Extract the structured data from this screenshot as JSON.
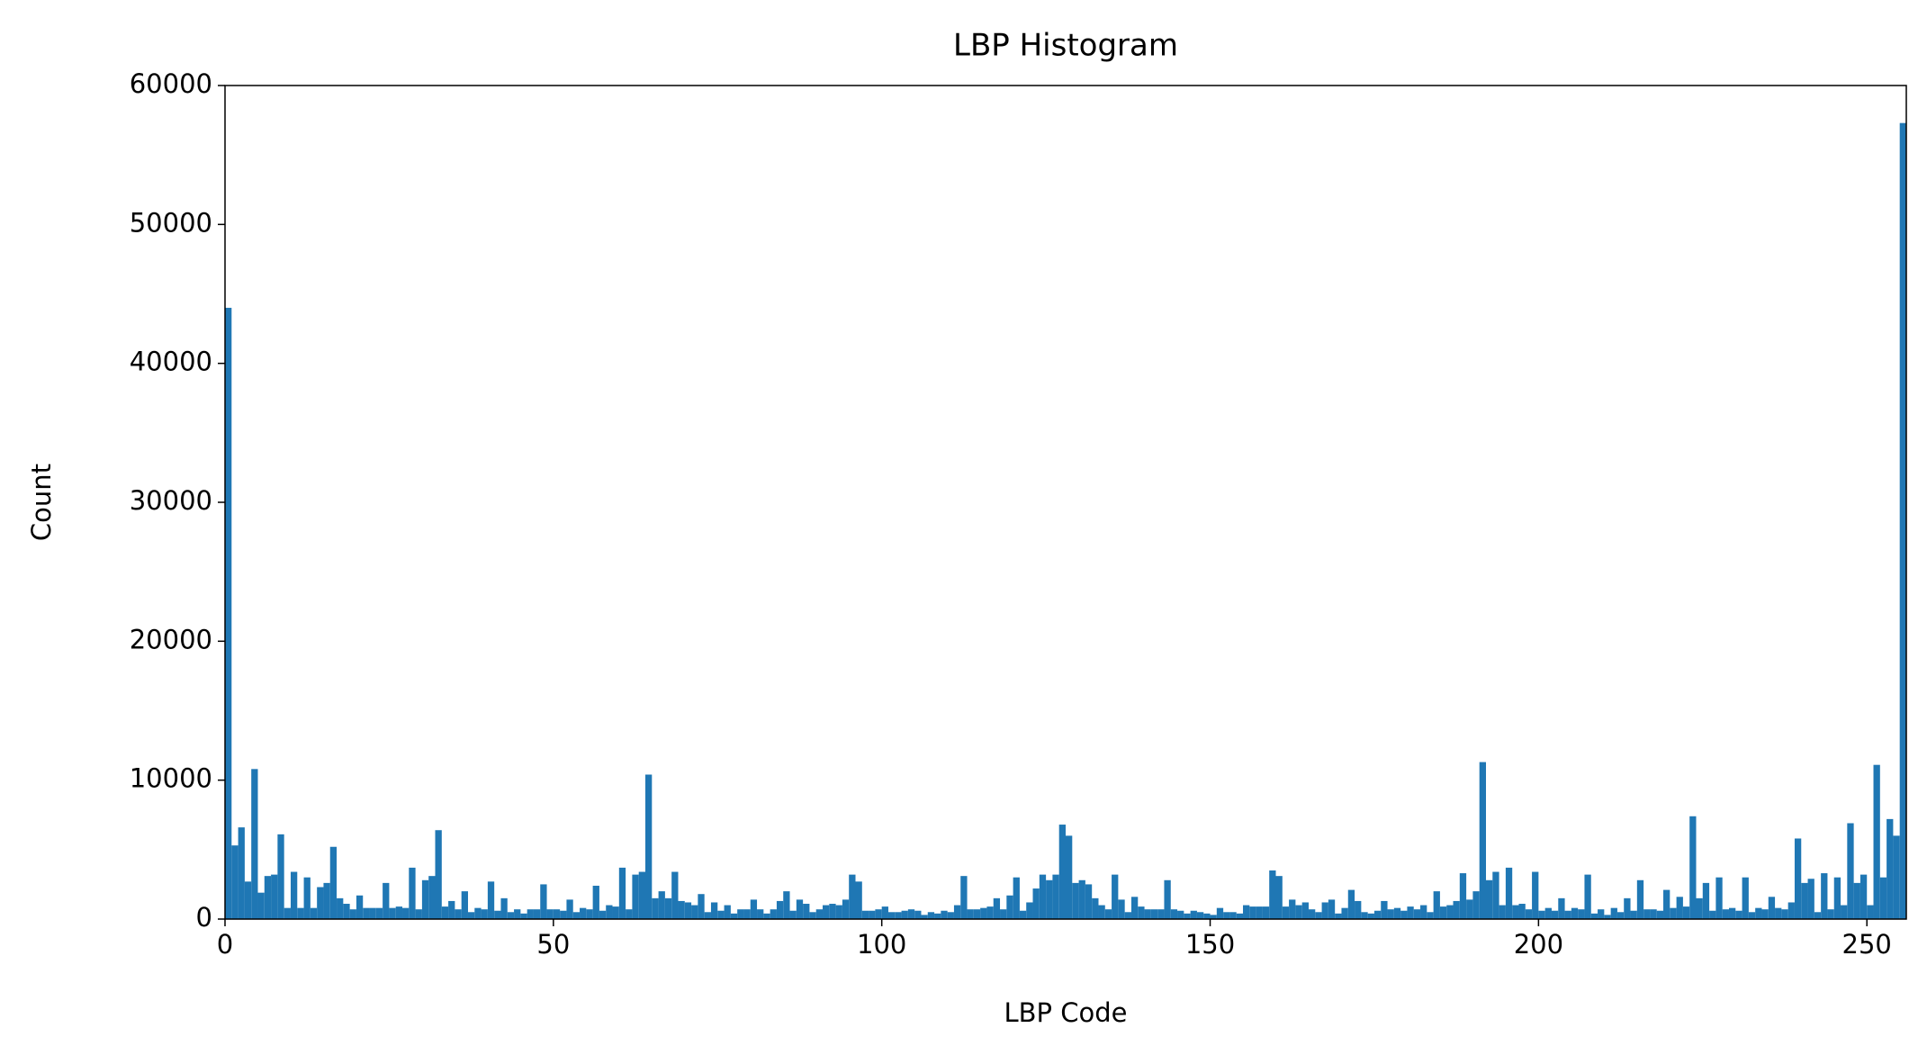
{
  "chart_data": {
    "type": "histogram",
    "title": "LBP Histogram",
    "x_label": "LBP Code",
    "y_label": "Count",
    "color": "#1f77b4",
    "bins": [
      0,
      1,
      2,
      3,
      4,
      5,
      6,
      7,
      8,
      9,
      10,
      11,
      12,
      13,
      14,
      15,
      16,
      17,
      18,
      19,
      20,
      21,
      22,
      23,
      24,
      25,
      26,
      27,
      28,
      29,
      30,
      31,
      32,
      33,
      34,
      35,
      36,
      37,
      38,
      39,
      40,
      41,
      42,
      43,
      44,
      45,
      46,
      47,
      48,
      49,
      50,
      51,
      52,
      53,
      54,
      55,
      56,
      57,
      58,
      59,
      60,
      61,
      62,
      63,
      64,
      65,
      66,
      67,
      68,
      69,
      70,
      71,
      72,
      73,
      74,
      75,
      76,
      77,
      78,
      79,
      80,
      81,
      82,
      83,
      84,
      85,
      86,
      87,
      88,
      89,
      90,
      91,
      92,
      93,
      94,
      95,
      96,
      97,
      98,
      99,
      100,
      101,
      102,
      103,
      104,
      105,
      106,
      107,
      108,
      109,
      110,
      111,
      112,
      113,
      114,
      115,
      116,
      117,
      118,
      119,
      120,
      121,
      122,
      123,
      124,
      125,
      126,
      127,
      128,
      129,
      130,
      131,
      132,
      133,
      134,
      135,
      136,
      137,
      138,
      139,
      140,
      141,
      142,
      143,
      144,
      145,
      146,
      147,
      148,
      149,
      150,
      151,
      152,
      153,
      154,
      155,
      156,
      157,
      158,
      159,
      160,
      161,
      162,
      163,
      164,
      165,
      166,
      167,
      168,
      169,
      170,
      171,
      172,
      173,
      174,
      175,
      176,
      177,
      178,
      179,
      180,
      181,
      182,
      183,
      184,
      185,
      186,
      187,
      188,
      189,
      190,
      191,
      192,
      193,
      194,
      195,
      196,
      197,
      198,
      199,
      200,
      201,
      202,
      203,
      204,
      205,
      206,
      207,
      208,
      209,
      210,
      211,
      212,
      213,
      214,
      215,
      216,
      217,
      218,
      219,
      220,
      221,
      222,
      223,
      224,
      225,
      226,
      227,
      228,
      229,
      230,
      231,
      232,
      233,
      234,
      235,
      236,
      237,
      238,
      239,
      240,
      241,
      242,
      243,
      244,
      245,
      246,
      247,
      248,
      249,
      250,
      251,
      252,
      253,
      254,
      255,
      256
    ],
    "values": [
      44000,
      5300,
      6600,
      2700,
      10800,
      1900,
      3100,
      3200,
      6100,
      800,
      3400,
      800,
      3000,
      800,
      2300,
      2600,
      5200,
      1500,
      1100,
      700,
      1700,
      800,
      800,
      800,
      2600,
      800,
      900,
      800,
      3700,
      700,
      2800,
      3100,
      6400,
      900,
      1300,
      700,
      2000,
      500,
      800,
      700,
      2700,
      600,
      1500,
      500,
      700,
      400,
      700,
      700,
      2500,
      700,
      700,
      600,
      1400,
      500,
      800,
      700,
      2400,
      600,
      1000,
      900,
      3700,
      700,
      3200,
      3400,
      10400,
      1500,
      2000,
      1500,
      3400,
      1300,
      1200,
      1000,
      1800,
      500,
      1200,
      600,
      1000,
      400,
      700,
      700,
      1400,
      700,
      400,
      700,
      1300,
      2000,
      600,
      1400,
      1100,
      500,
      700,
      1000,
      1100,
      1000,
      1400,
      3200,
      2700,
      600,
      600,
      700,
      900,
      500,
      500,
      600,
      700,
      600,
      300,
      500,
      400,
      600,
      500,
      1000,
      3100,
      700,
      700,
      800,
      900,
      1500,
      700,
      1700,
      3000,
      600,
      1200,
      2200,
      3200,
      2800,
      3200,
      6800,
      6000,
      2600,
      2800,
      2500,
      1500,
      1000,
      700,
      3200,
      1400,
      500,
      1600,
      900,
      700,
      700,
      700,
      2800,
      700,
      600,
      400,
      600,
      500,
      400,
      300,
      800,
      500,
      500,
      400,
      1000,
      900,
      900,
      900,
      3500,
      3100,
      900,
      1400,
      1000,
      1200,
      700,
      500,
      1200,
      1400,
      400,
      800,
      2100,
      1300,
      500,
      400,
      600,
      1300,
      700,
      800,
      600,
      900,
      700,
      1000,
      500,
      2000,
      900,
      1000,
      1300,
      3300,
      1400,
      2000,
      11300,
      2800,
      3400,
      1000,
      3700,
      1000,
      1100,
      700,
      3400,
      600,
      800,
      600,
      1500,
      600,
      800,
      700,
      3200,
      400,
      700,
      300,
      800,
      500,
      1500,
      600,
      2800,
      700,
      700,
      600,
      2100,
      800,
      1600,
      900,
      7400,
      1500,
      2600,
      600,
      3000,
      700,
      800,
      600,
      3000,
      500,
      800,
      700,
      1600,
      800,
      700,
      1200,
      5800,
      2600,
      2900,
      500,
      3300,
      700,
      3000,
      1000,
      6900,
      2600,
      3200,
      1000,
      11100,
      3000,
      7200,
      6000,
      57300
    ],
    "xlim": [
      0,
      256
    ],
    "ylim": [
      0,
      60000
    ],
    "xticks": [
      0,
      50,
      100,
      150,
      200,
      250
    ],
    "yticks": [
      0,
      10000,
      20000,
      30000,
      40000,
      50000,
      60000
    ]
  }
}
